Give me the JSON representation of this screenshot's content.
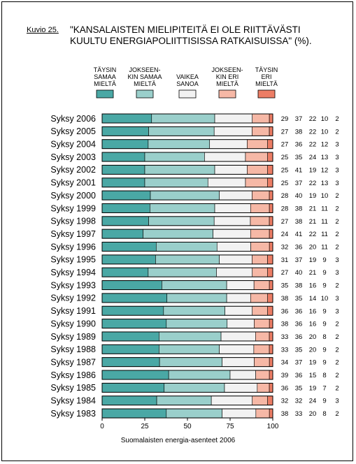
{
  "figure": {
    "label": "Kuvio 25.",
    "title_line1": "\"KANSALAISTEN MIELIPITEITÄ EI OLE RIITTÄVÄSTI",
    "title_line2": "KUULTU ENERGIAPOLIITTISISSA RATKAISUISSA\" (%).",
    "source": "Suomalaisten energia-asenteet 2006"
  },
  "chart_data": {
    "type": "bar",
    "orientation": "horizontal",
    "stacked": true,
    "title": "\"KANSALAISTEN MIELIPITEITÄ EI OLE RIITTÄVÄSTI KUULTU ENERGIAPOLIITTISISSA RATKAISUISSA\" (%).",
    "xlim": [
      0,
      100
    ],
    "xticks": [
      "0",
      "25",
      "50",
      "75",
      "100"
    ],
    "legend_position": "top",
    "grid": false,
    "categories": [
      "Syksy 2006",
      "Syksy 2005",
      "Syksy 2004",
      "Syksy 2003",
      "Syksy 2002",
      "Syksy 2001",
      "Syksy 2000",
      "Syksy 1999",
      "Syksy 1998",
      "Syksy 1997",
      "Syksy 1996",
      "Syksy 1995",
      "Syksy 1994",
      "Syksy 1993",
      "Syksy 1992",
      "Syksy 1991",
      "Syksy 1990",
      "Syksy 1989",
      "Syksy 1988",
      "Syksy 1987",
      "Syksy 1986",
      "Syksy 1985",
      "Syksy 1984",
      "Syksy 1983"
    ],
    "series": [
      {
        "name": "TÄYSIN SAMAA MIELTÄ",
        "legend_lines": [
          "TÄYSIN",
          "SAMAA",
          "MIELTÄ"
        ],
        "color": "#4aa8a5",
        "values": [
          29,
          27,
          27,
          25,
          25,
          25,
          28,
          28,
          27,
          24,
          32,
          31,
          27,
          35,
          38,
          36,
          38,
          33,
          33,
          34,
          39,
          36,
          32,
          38
        ]
      },
      {
        "name": "JOKSEENKIN SAMAA MIELTÄ",
        "legend_lines": [
          "JOKSEEN-",
          "KIN SAMAA",
          "MIELTÄ"
        ],
        "color": "#9acfcb",
        "values": [
          37,
          38,
          36,
          35,
          41,
          37,
          40,
          38,
          38,
          41,
          36,
          37,
          40,
          38,
          35,
          36,
          36,
          36,
          35,
          37,
          36,
          35,
          32,
          33
        ]
      },
      {
        "name": "VAIKEA SANOA",
        "legend_lines": [
          "VAIKEA",
          "SANOA"
        ],
        "color": "#f2f2f2",
        "values": [
          22,
          22,
          22,
          24,
          19,
          22,
          19,
          21,
          21,
          22,
          20,
          19,
          21,
          16,
          14,
          16,
          16,
          20,
          20,
          19,
          15,
          19,
          24,
          20
        ]
      },
      {
        "name": "JOKSEENKIN ERI MIELTÄ",
        "legend_lines": [
          "JOKSEEN-",
          "KIN ERI",
          "MIELTÄ"
        ],
        "color": "#f6b8a6",
        "values": [
          10,
          10,
          12,
          13,
          12,
          13,
          10,
          11,
          11,
          11,
          11,
          9,
          9,
          9,
          10,
          9,
          9,
          8,
          9,
          9,
          8,
          7,
          9,
          8
        ]
      },
      {
        "name": "TÄYSIN ERI MIELTÄ",
        "legend_lines": [
          "TÄYSIN",
          "ERI",
          "MIELTÄ"
        ],
        "color": "#ec7d65",
        "values": [
          2,
          2,
          3,
          3,
          3,
          3,
          2,
          2,
          2,
          2,
          2,
          3,
          3,
          2,
          3,
          3,
          2,
          2,
          2,
          2,
          2,
          2,
          3,
          2
        ]
      }
    ]
  }
}
